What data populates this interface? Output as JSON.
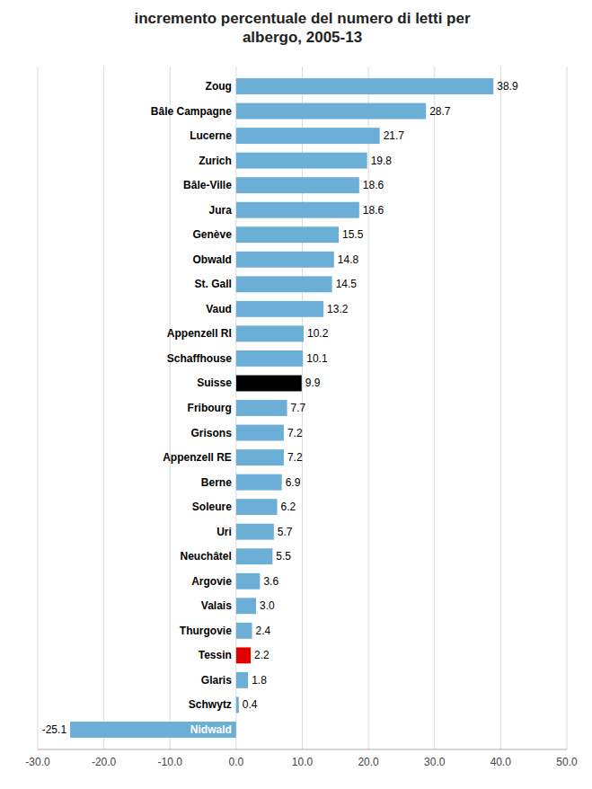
{
  "chart_data": {
    "type": "bar",
    "orientation": "horizontal",
    "title": "incremento percentuale del numero di letti per\nalbergo, 2005-13",
    "categories": [
      "Zoug",
      "Bâle Campagne",
      "Lucerne",
      "Zurich",
      "Bâle-Ville",
      "Jura",
      "Genève",
      "Obwald",
      "St. Gall",
      "Vaud",
      "Appenzell RI",
      "Schaffhouse",
      "Suisse",
      "Fribourg",
      "Grisons",
      "Appenzell RE",
      "Berne",
      "Soleure",
      "Uri",
      "Neuchâtel",
      "Argovie",
      "Valais",
      "Thurgovie",
      "Tessin",
      "Glaris",
      "Schwytz",
      "Nidwald"
    ],
    "values": [
      38.9,
      28.7,
      21.7,
      19.8,
      18.6,
      18.6,
      15.5,
      14.8,
      14.5,
      13.2,
      10.2,
      10.1,
      9.9,
      7.7,
      7.2,
      7.2,
      6.9,
      6.2,
      5.7,
      5.5,
      3.6,
      3.0,
      2.4,
      2.2,
      1.8,
      0.4,
      -25.1
    ],
    "value_labels": [
      "38.9",
      "28.7",
      "21.7",
      "19.8",
      "18.6",
      "18.6",
      "15.5",
      "14.8",
      "14.5",
      "13.2",
      "10.2",
      "10.1",
      "9.9",
      "7.7",
      "7.2",
      "7.2",
      "6.9",
      "6.2",
      "5.7",
      "5.5",
      "3.6",
      "3.0",
      "2.4",
      "2.2",
      "1.8",
      "0.4",
      "-25.1"
    ],
    "colors": [
      "#6baed6",
      "#6baed6",
      "#6baed6",
      "#6baed6",
      "#6baed6",
      "#6baed6",
      "#6baed6",
      "#6baed6",
      "#6baed6",
      "#6baed6",
      "#6baed6",
      "#6baed6",
      "#000000",
      "#6baed6",
      "#6baed6",
      "#6baed6",
      "#6baed6",
      "#6baed6",
      "#6baed6",
      "#6baed6",
      "#6baed6",
      "#6baed6",
      "#6baed6",
      "#e00000",
      "#6baed6",
      "#6baed6",
      "#6baed6"
    ],
    "xlim": [
      -30,
      50
    ],
    "xticks": [
      {
        "value": -30,
        "label": "-30.0"
      },
      {
        "value": -20,
        "label": "-20.0"
      },
      {
        "value": -10,
        "label": "-10.0"
      },
      {
        "value": 0,
        "label": "0.0"
      },
      {
        "value": 10,
        "label": "10.0"
      },
      {
        "value": 20,
        "label": "20.0"
      },
      {
        "value": 30,
        "label": "30.0"
      },
      {
        "value": 40,
        "label": "40.0"
      },
      {
        "value": 50,
        "label": "50.0"
      }
    ],
    "grid": true,
    "data_labels": true
  }
}
